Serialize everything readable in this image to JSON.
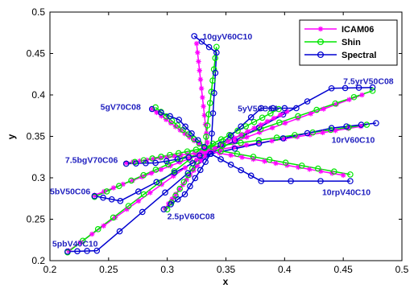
{
  "chart_data": {
    "type": "line",
    "xlabel": "x",
    "ylabel": "y",
    "xlim": [
      0.2,
      0.5
    ],
    "ylim": [
      0.2,
      0.5
    ],
    "xticks": [
      "0.2",
      "0.25",
      "0.3",
      "0.35",
      "0.4",
      "0.45",
      "0.5"
    ],
    "yticks": [
      "0.2",
      "0.25",
      "0.3",
      "0.35",
      "0.4",
      "0.45",
      "0.5"
    ],
    "grid": false,
    "legend": "top-right",
    "center": [
      0.335,
      0.332
    ],
    "series": [
      {
        "name": "ICAM06",
        "color": "#ff00ff",
        "marker": "star"
      },
      {
        "name": "Shin",
        "color": "#00e600",
        "marker": "circle"
      },
      {
        "name": "Spectral",
        "color": "#0000d0",
        "marker": "circle"
      }
    ],
    "hues": [
      {
        "label": "10gyV60C10",
        "label_at": [
          0.33,
          0.467
        ],
        "icam_end": [
          0.325,
          0.462
        ],
        "shin_end": [
          0.342,
          0.458
        ],
        "spectral_end": [
          0.323,
          0.471
        ],
        "spectral_bend": [
          0.342,
          0.451
        ]
      },
      {
        "label": "7.5yrV50C08",
        "label_at": [
          0.45,
          0.413
        ],
        "icam_end": [
          0.466,
          0.4
        ],
        "shin_end": [
          0.475,
          0.405
        ],
        "spectral_end": [
          0.475,
          0.409
        ],
        "spectral_bend": [
          0.44,
          0.408
        ]
      },
      {
        "label": "5yV50C04",
        "label_at": [
          0.36,
          0.38
        ],
        "icam_end": [
          0.402,
          0.38
        ],
        "shin_end": [
          0.395,
          0.383
        ],
        "spectral_end": [
          0.41,
          0.384
        ],
        "spectral_bend": [
          0.38,
          0.384
        ]
      },
      {
        "label": "10rV60C10",
        "label_at": [
          0.44,
          0.342
        ],
        "icam_end": [
          0.465,
          0.362
        ],
        "shin_end": [
          0.47,
          0.364
        ],
        "spectral_end": [
          0.478,
          0.366
        ],
        "spectral_bend": [
          0.44,
          0.36
        ]
      },
      {
        "label": "10rpV40C10",
        "label_at": [
          0.432,
          0.279
        ],
        "icam_end": [
          0.45,
          0.303
        ],
        "shin_end": [
          0.456,
          0.304
        ],
        "spectral_end": [
          0.456,
          0.296
        ],
        "spectral_bend": [
          0.38,
          0.296
        ]
      },
      {
        "label": "2.5pV60C08",
        "label_at": [
          0.3,
          0.25
        ],
        "icam_end": [
          0.298,
          0.263
        ],
        "shin_end": [
          0.3,
          0.262
        ],
        "spectral_end": [
          0.297,
          0.262
        ],
        "spectral_bend": [
          0.315,
          0.28
        ]
      },
      {
        "label": "5pbV40C10",
        "label_at": [
          0.202,
          0.217
        ],
        "icam_end": [
          0.216,
          0.212
        ],
        "shin_end": [
          0.215,
          0.21
        ],
        "spectral_end": [
          0.215,
          0.211
        ],
        "spectral_bend": [
          0.24,
          0.212
        ]
      },
      {
        "label": "5bV50C06",
        "label_at": [
          0.2,
          0.28
        ],
        "icam_end": [
          0.238,
          0.279
        ],
        "shin_end": [
          0.238,
          0.277
        ],
        "spectral_end": [
          0.238,
          0.278
        ],
        "spectral_bend": [
          0.26,
          0.272
        ]
      },
      {
        "label": "7.5bgV70C06",
        "label_at": [
          0.213,
          0.318
        ],
        "icam_end": [
          0.265,
          0.318
        ],
        "shin_end": [
          0.265,
          0.317
        ],
        "spectral_end": [
          0.265,
          0.317
        ],
        "spectral_bend": [
          0.29,
          0.318
        ]
      },
      {
        "label": "5gV70C08",
        "label_at": [
          0.243,
          0.382
        ],
        "icam_end": [
          0.287,
          0.383
        ],
        "shin_end": [
          0.29,
          0.385
        ],
        "spectral_end": [
          0.287,
          0.383
        ],
        "spectral_bend": [
          0.31,
          0.37
        ]
      }
    ]
  }
}
